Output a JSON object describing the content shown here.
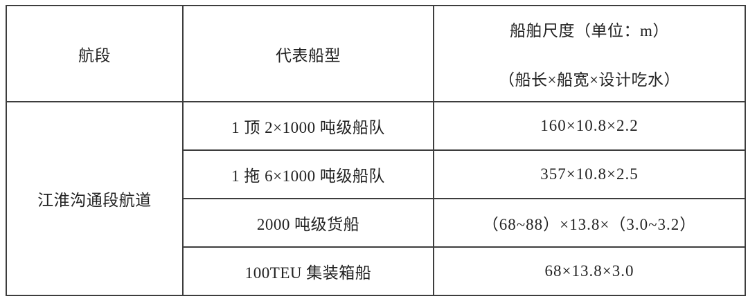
{
  "table": {
    "header": {
      "col1": "航段",
      "col2": "代表船型",
      "col3_line1": "船舶尺度（单位：m）",
      "col3_line2": "（船长×船宽×设计吃水）"
    },
    "section_label": "江淮沟通段航道",
    "rows": [
      {
        "ship_type": "1 顶 2×1000 吨级船队",
        "dimensions": "160×10.8×2.2"
      },
      {
        "ship_type": "1 拖 6×1000 吨级船队",
        "dimensions": "357×10.8×2.5"
      },
      {
        "ship_type": "2000 吨级货船",
        "dimensions": "（68~88）×13.8×（3.0~3.2）"
      },
      {
        "ship_type": "100TEU 集装箱船",
        "dimensions": "68×13.8×3.0"
      }
    ],
    "colors": {
      "border": "#3d3d3d",
      "text": "#222222",
      "background": "#ffffff"
    }
  }
}
